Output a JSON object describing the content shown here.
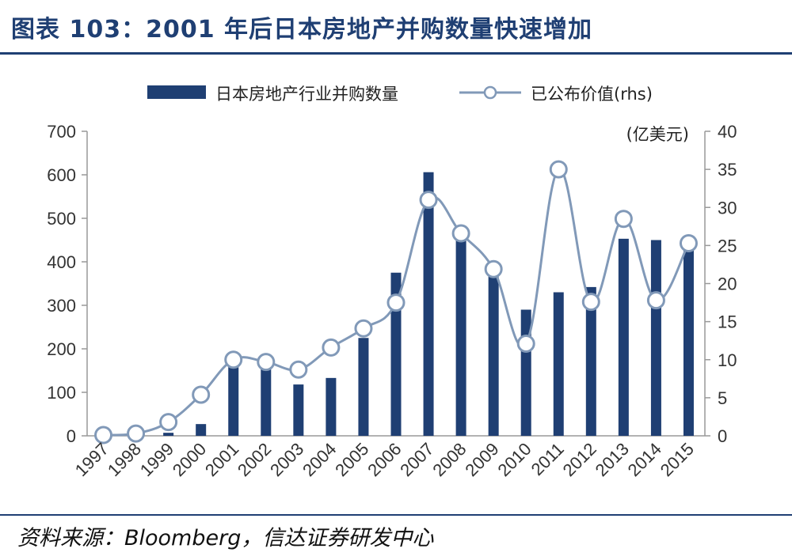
{
  "title": "图表 103：2001 年后日本房地产并购数量快速增加",
  "source": "资料来源：Bloomberg，信达证券研发中心",
  "chart_data": {
    "type": "bar+line",
    "categories": [
      "1997",
      "1998",
      "1999",
      "2000",
      "2001",
      "2002",
      "2003",
      "2004",
      "2005",
      "2006",
      "2007",
      "2008",
      "2009",
      "2010",
      "2011",
      "2012",
      "2013",
      "2014",
      "2015"
    ],
    "series": [
      {
        "name": "日本房地产行业并购数量",
        "type": "bar",
        "axis": "left",
        "color": "#1f3f73",
        "values": [
          0,
          2,
          7,
          27,
          163,
          160,
          118,
          133,
          225,
          375,
          606,
          480,
          377,
          290,
          330,
          342,
          453,
          450,
          435
        ]
      },
      {
        "name": "已公布价值(rhs)",
        "type": "line",
        "axis": "right",
        "color": "#8199b8",
        "values": [
          0.1,
          0.3,
          1.8,
          5.4,
          10.0,
          9.7,
          8.7,
          11.6,
          14.1,
          17.5,
          31.0,
          26.6,
          21.9,
          12.1,
          35.0,
          17.6,
          28.5,
          17.8,
          25.3
        ]
      }
    ],
    "y_left": {
      "min": 0,
      "max": 700,
      "ticks": [
        "0",
        "100",
        "200",
        "300",
        "400",
        "500",
        "600",
        "700"
      ]
    },
    "y_right": {
      "min": 0,
      "max": 40,
      "ticks": [
        "0",
        "5",
        "10",
        "15",
        "20",
        "25",
        "30",
        "35",
        "40"
      ],
      "unit": "(亿美元)"
    },
    "grid": false,
    "legend_position": "top"
  }
}
